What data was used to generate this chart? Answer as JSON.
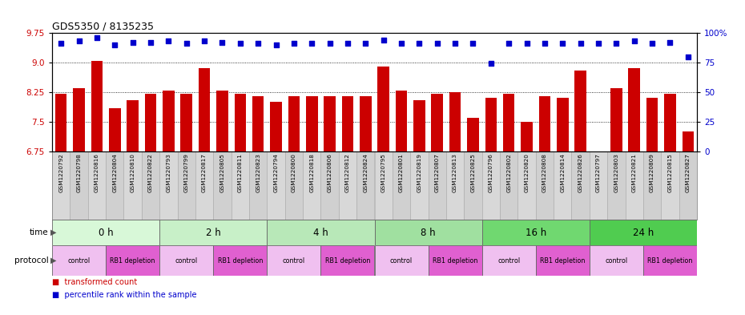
{
  "title": "GDS5350 / 8135235",
  "samples": [
    "GSM1220792",
    "GSM1220798",
    "GSM1220816",
    "GSM1220804",
    "GSM1220810",
    "GSM1220822",
    "GSM1220793",
    "GSM1220799",
    "GSM1220817",
    "GSM1220805",
    "GSM1220811",
    "GSM1220823",
    "GSM1220794",
    "GSM1220800",
    "GSM1220818",
    "GSM1220806",
    "GSM1220812",
    "GSM1220824",
    "GSM1220795",
    "GSM1220801",
    "GSM1220819",
    "GSM1220807",
    "GSM1220813",
    "GSM1220825",
    "GSM1220796",
    "GSM1220802",
    "GSM1220820",
    "GSM1220808",
    "GSM1220814",
    "GSM1220826",
    "GSM1220797",
    "GSM1220803",
    "GSM1220821",
    "GSM1220809",
    "GSM1220815",
    "GSM1220827"
  ],
  "bar_values": [
    8.2,
    8.35,
    9.05,
    7.85,
    8.05,
    8.2,
    8.3,
    8.2,
    8.85,
    8.3,
    8.2,
    8.15,
    8.0,
    8.15,
    8.15,
    8.15,
    8.15,
    8.15,
    8.9,
    8.3,
    8.05,
    8.2,
    8.25,
    7.6,
    8.1,
    8.2,
    7.5,
    8.15,
    8.1,
    8.8,
    6.75,
    8.35,
    8.85,
    8.1,
    8.2,
    7.25
  ],
  "percentile_values": [
    91,
    93,
    96,
    90,
    92,
    92,
    93,
    91,
    93,
    92,
    91,
    91,
    90,
    91,
    91,
    91,
    91,
    91,
    94,
    91,
    91,
    91,
    91,
    91,
    74,
    91,
    91,
    91,
    91,
    91,
    91,
    91,
    93,
    91,
    92,
    80
  ],
  "time_labels": [
    "0 h",
    "2 h",
    "4 h",
    "8 h",
    "16 h",
    "24 h"
  ],
  "time_colors": [
    "#d8f8d8",
    "#c8f0c8",
    "#b8e8b8",
    "#a0e0a0",
    "#70d870",
    "#50cc50"
  ],
  "protocol_labels": [
    "control",
    "RB1 depletion",
    "control",
    "RB1 depletion",
    "control",
    "RB1 depletion",
    "control",
    "RB1 depletion",
    "control",
    "RB1 depletion",
    "control",
    "RB1 depletion"
  ],
  "protocol_colors": [
    "#f0c0f0",
    "#e060d0",
    "#f0c0f0",
    "#e060d0",
    "#f0c0f0",
    "#e060d0",
    "#f0c0f0",
    "#e060d0",
    "#f0c0f0",
    "#e060d0",
    "#f0c0f0",
    "#e060d0"
  ],
  "bar_color": "#cc0000",
  "dot_color": "#0000cc",
  "ylim_left": [
    6.75,
    9.75
  ],
  "ylim_right": [
    0,
    100
  ],
  "yticks_left": [
    6.75,
    7.5,
    8.25,
    9.0,
    9.75
  ],
  "yticks_right": [
    0,
    25,
    50,
    75,
    100
  ],
  "grid_lines": [
    7.5,
    8.25,
    9.0
  ],
  "legend_red": "transformed count",
  "legend_blue": "percentile rank within the sample",
  "bg_color": "#ffffff",
  "xticklabel_bg": "#d8d8d8",
  "xticklabel_border": "#888888"
}
